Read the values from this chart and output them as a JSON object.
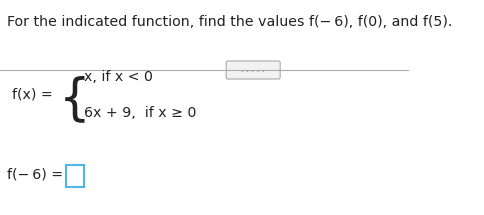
{
  "title": "For the indicated function, find the values f(− 6), f(0), and f(5).",
  "title_color": "#222222",
  "title_fontsize": 10.2,
  "fx_label": "f(x) =",
  "fx_fontsize": 10.2,
  "case1": "x, if x < 0",
  "case1_fontsize": 10.2,
  "case2": "6x + 9,  if x ≥ 0",
  "case2_fontsize": 10.2,
  "answer_label": "f(− 6) =",
  "answer_fontsize": 10.2,
  "box_color": "#4db8e8",
  "dots_text": ". . . . .",
  "bg_color": "#ffffff",
  "separator_color": "#aaaaaa",
  "dots_bg": "#f2f2f2",
  "dots_border": "#aaaaaa"
}
